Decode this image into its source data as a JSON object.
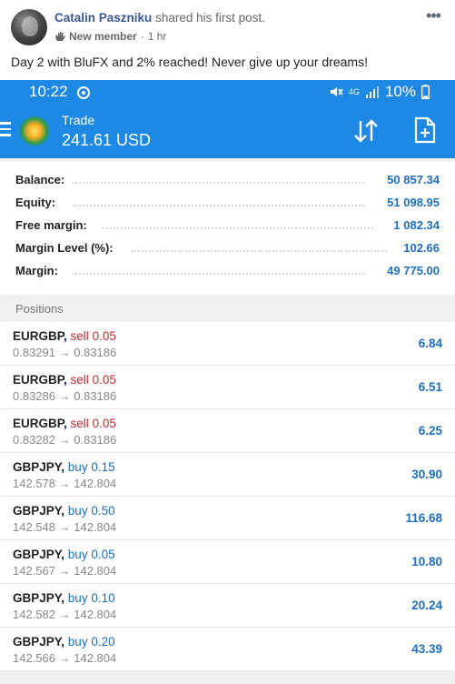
{
  "post": {
    "author": "Catalin Paszniku",
    "action": "shared his first post.",
    "badge": "New member",
    "separator": "·",
    "time": "1 hr",
    "more": "•••",
    "text": "Day 2 with BluFX and 2% reached! Never give up your dreams!"
  },
  "phone": {
    "status": {
      "time": "10:22",
      "battery": "10%",
      "network": "4G"
    },
    "app": {
      "title": "Trade",
      "equity_display": "241.61 USD"
    },
    "account": [
      {
        "label": "Balance:",
        "value": "50 857.34"
      },
      {
        "label": "Equity:",
        "value": "51 098.95"
      },
      {
        "label": "Free margin:",
        "value": "1 082.34"
      },
      {
        "label": "Margin Level (%):",
        "value": "102.66"
      },
      {
        "label": "Margin:",
        "value": "49 775.00"
      }
    ],
    "positions_title": "Positions",
    "positions": [
      {
        "symbol": "EURGBP,",
        "side": "sell",
        "volume": "0.05",
        "open": "0.83291",
        "arrow": "→",
        "current": "0.83186",
        "profit": "6.84"
      },
      {
        "symbol": "EURGBP,",
        "side": "sell",
        "volume": "0.05",
        "open": "0.83286",
        "arrow": "→",
        "current": "0.83186",
        "profit": "6.51"
      },
      {
        "symbol": "EURGBP,",
        "side": "sell",
        "volume": "0.05",
        "open": "0.83282",
        "arrow": "→",
        "current": "0.83186",
        "profit": "6.25"
      },
      {
        "symbol": "GBPJPY,",
        "side": "buy",
        "volume": "0.15",
        "open": "142.578",
        "arrow": "→",
        "current": "142.804",
        "profit": "30.90"
      },
      {
        "symbol": "GBPJPY,",
        "side": "buy",
        "volume": "0.50",
        "open": "142.548",
        "arrow": "→",
        "current": "142.804",
        "profit": "116.68"
      },
      {
        "symbol": "GBPJPY,",
        "side": "buy",
        "volume": "0.05",
        "open": "142.567",
        "arrow": "→",
        "current": "142.804",
        "profit": "10.80"
      },
      {
        "symbol": "GBPJPY,",
        "side": "buy",
        "volume": "0.10",
        "open": "142.582",
        "arrow": "→",
        "current": "142.804",
        "profit": "20.24"
      },
      {
        "symbol": "GBPJPY,",
        "side": "buy",
        "volume": "0.20",
        "open": "142.566",
        "arrow": "→",
        "current": "142.804",
        "profit": "43.39"
      }
    ],
    "colors": {
      "accent": "#1e88e5",
      "sell": "#cc2727",
      "buy": "#1e6fc0"
    },
    "icons": [
      "menu-icon",
      "app-logo-icon",
      "sort-icon",
      "new-order-icon",
      "mute-icon",
      "signal-icon",
      "battery-icon"
    ]
  }
}
